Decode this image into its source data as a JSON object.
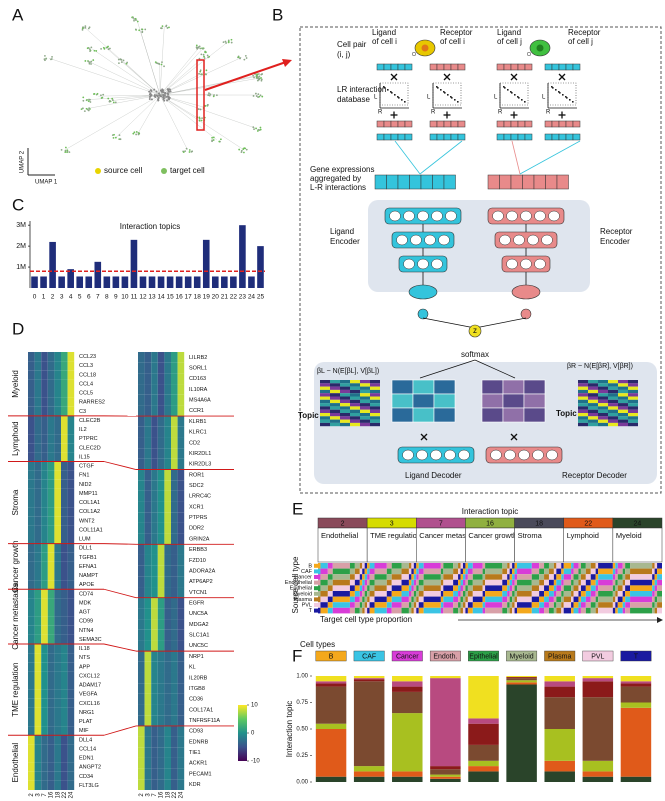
{
  "panel_labels": [
    "A",
    "B",
    "C",
    "D",
    "E",
    "F"
  ],
  "umap": {
    "y_label": "UMAP 2",
    "x_label": "UMAP 1",
    "legend": [
      {
        "name": "source cell",
        "color": "#e8d400"
      },
      {
        "name": "target cell",
        "color": "#7fbf5f"
      }
    ]
  },
  "diagram": {
    "cell_pair": [
      "Cell pair",
      "(i, j)"
    ],
    "ligand_i": [
      "Ligand",
      "of cell i"
    ],
    "receptor_i": [
      "Receptor",
      "of cell i"
    ],
    "ligand_j": [
      "Ligand",
      "of cell j"
    ],
    "receptor_j": [
      "Receptor",
      "of cell j"
    ],
    "lr_database": [
      "LR interaction",
      "database"
    ],
    "matrix_axes": [
      "L",
      "R"
    ],
    "aggregated": [
      "Gene expressions",
      "aggregated by",
      "L-R interactions"
    ],
    "ligand_encoder": [
      "Ligand",
      "Encoder"
    ],
    "receptor_encoder": [
      "Receptor",
      "Encoder"
    ],
    "z": "z",
    "softmax": "softmax",
    "beta_l": "βL ~ N(E[βL], V[βL])",
    "beta_r": "βR ~ N(E[βR], V[βR])",
    "topic_l": "Topic",
    "topic_r": "Topic",
    "ligand_decoder": "Ligand Decoder",
    "receptor_decoder": "Receptor Decoder"
  },
  "chart_data": [
    {
      "type": "bar",
      "title": "Interaction topics",
      "categories": [
        "0",
        "1",
        "2",
        "3",
        "4",
        "5",
        "6",
        "7",
        "8",
        "9",
        "10",
        "11",
        "12",
        "13",
        "14",
        "15",
        "16",
        "17",
        "18",
        "19",
        "20",
        "21",
        "22",
        "23",
        "24",
        "25"
      ],
      "values": [
        550000,
        550000,
        2200000,
        550000,
        900000,
        550000,
        550000,
        1250000,
        550000,
        550000,
        550000,
        2300000,
        550000,
        550000,
        550000,
        550000,
        550000,
        550000,
        550000,
        2300000,
        550000,
        550000,
        550000,
        3000000,
        550000,
        2000000
      ],
      "color": "#1f2d7a",
      "ylim": [
        0,
        3200000
      ],
      "yticks": [
        {
          "value": 1000000,
          "label": "1M"
        },
        {
          "value": 2000000,
          "label": "2M"
        },
        {
          "value": 3000000,
          "label": "3M"
        }
      ],
      "reference_line": 800000,
      "reference_color": "#e0201e"
    },
    {
      "type": "heatmap",
      "columns": [
        "2",
        "3",
        "7",
        "16",
        "18",
        "22",
        "24"
      ],
      "groups": [
        "Myeloid",
        "Lymphoid",
        "Stroma",
        "Cancer growth",
        "Cancer metastasis",
        "TME regulation",
        "Endothelial"
      ],
      "clim": [
        -10,
        10
      ],
      "colorbar_ticks": [
        10,
        0,
        -10
      ],
      "ligand": {
        "genes": [
          [
            "CCL23",
            "CCL3",
            "CCL18",
            "CCL4",
            "CCL5",
            "RARRES2",
            "C3"
          ],
          [
            "CLEC2B",
            "IL2",
            "PTPRC",
            "CLEC2D",
            "IL15"
          ],
          [
            "CTGF",
            "FN1",
            "NID2",
            "MMP11",
            "COL1A1",
            "COL1A2",
            "WNT2",
            "COL11A1",
            "LUM"
          ],
          [
            "DLL1",
            "TGFB1",
            "EFNA1",
            "NAMPT",
            "APOE"
          ],
          [
            "CD74",
            "MDK",
            "AGT",
            "CD99",
            "NTN4",
            "SEMA3C"
          ],
          [
            "IL18",
            "NTS",
            "APP",
            "CXCL12",
            "ADAM17",
            "VEGFA",
            "CXCL16",
            "NRG1",
            "PLAT",
            "MIF"
          ],
          [
            "DLL4",
            "CCL14",
            "EDN1",
            "ANGPT2",
            "CD34",
            "FLT3LG"
          ]
        ],
        "values": [
          [
            -4,
            -2,
            -5,
            -3,
            -1,
            2,
            9
          ],
          [
            -5,
            -3,
            -4,
            -2,
            -3,
            9,
            -1
          ],
          [
            -2,
            -3,
            -1,
            1,
            9,
            -4,
            -5
          ],
          [
            -3,
            -2,
            1,
            9,
            -2,
            -5,
            -4
          ],
          [
            -1,
            1,
            9,
            2,
            -3,
            -4,
            -5
          ],
          [
            -2,
            9,
            0,
            -3,
            -2,
            -1,
            -4
          ],
          [
            9,
            -1,
            -3,
            -4,
            -2,
            -5,
            -3
          ]
        ]
      },
      "receptor": {
        "genes": [
          [
            "LILRB2",
            "SORL1",
            "CD163",
            "IL10RA",
            "MS4A6A",
            "CCR1"
          ],
          [
            "KLRB1",
            "KLRC1",
            "CD2",
            "KIR2DL1",
            "KIR2DL3"
          ],
          [
            "ROR1",
            "SDC2",
            "LRRC4C",
            "XCR1",
            "PTPRS",
            "DDR2",
            "GRIN2A"
          ],
          [
            "ERBB3",
            "FZD10",
            "ADORA2A",
            "ATP6AP2",
            "VTCN1"
          ],
          [
            "EGFR",
            "UNC5A",
            "MDGA2",
            "SLC1A1",
            "UNC5C"
          ],
          [
            "NRP1",
            "KL",
            "IL20RB",
            "ITGB8",
            "CD36",
            "COL17A1",
            "TNFRSF11A"
          ],
          [
            "CD93",
            "EDNRB",
            "TIE1",
            "ACKR1",
            "PECAM1",
            "KDR"
          ]
        ],
        "values": [
          [
            -3,
            -4,
            -2,
            -5,
            -2,
            1,
            8
          ],
          [
            -4,
            -2,
            -5,
            -3,
            -1,
            8,
            -2
          ],
          [
            -1,
            -4,
            -2,
            0,
            8,
            -3,
            -5
          ],
          [
            -4,
            -1,
            0,
            8,
            -3,
            -4,
            -2
          ],
          [
            -2,
            0,
            8,
            1,
            -4,
            -3,
            -5
          ],
          [
            -3,
            8,
            -1,
            -2,
            -3,
            -2,
            -4
          ],
          [
            8,
            -2,
            -4,
            -3,
            -1,
            -4,
            -2
          ]
        ]
      }
    },
    {
      "type": "stacked-strip",
      "title": "Interaction topic",
      "topics": [
        {
          "id": "2",
          "name": "Endothelial",
          "color": "#8a4a5a"
        },
        {
          "id": "3",
          "name": "TME regulation",
          "color": "#d6dc00"
        },
        {
          "id": "7",
          "name": "Cancer metastasis",
          "color": "#b0508e"
        },
        {
          "id": "16",
          "name": "Cancer growth",
          "color": "#90b040"
        },
        {
          "id": "18",
          "name": "Stroma",
          "color": "#4a4a5a"
        },
        {
          "id": "22",
          "name": "Lymphoid",
          "color": "#e05a1a"
        },
        {
          "id": "24",
          "name": "Myeloid",
          "color": "#2a442a"
        }
      ],
      "rows": [
        "B",
        "CAF",
        "Cancer",
        "Endothelial",
        "Epithelial",
        "Myeloid",
        "Plasma",
        "PVL",
        "T"
      ],
      "row_colors": [
        "#f4a81c",
        "#3ac4e4",
        "#d83cd8",
        "#d8a0a8",
        "#2ca048",
        "#a8b890",
        "#b87a1c",
        "#f2cce0",
        "#1a1aa0"
      ],
      "y_label": "Source cell type",
      "x_label": "Target cell type proportion",
      "proportions": [
        [
          0.05,
          0.15,
          0.1,
          0.35,
          0.1,
          0.1,
          0.05,
          0.05,
          0.05
        ],
        [
          0.05,
          0.1,
          0.25,
          0.1,
          0.2,
          0.15,
          0.05,
          0.05,
          0.05
        ],
        [
          0.05,
          0.1,
          0.35,
          0.05,
          0.2,
          0.1,
          0.05,
          0.05,
          0.05
        ],
        [
          0.05,
          0.1,
          0.2,
          0.05,
          0.35,
          0.1,
          0.05,
          0.05,
          0.05
        ],
        [
          0.05,
          0.3,
          0.15,
          0.1,
          0.1,
          0.1,
          0.05,
          0.1,
          0.05
        ],
        [
          0.15,
          0.05,
          0.1,
          0.05,
          0.1,
          0.1,
          0.1,
          0.05,
          0.3
        ],
        [
          0.05,
          0.05,
          0.1,
          0.05,
          0.1,
          0.45,
          0.05,
          0.05,
          0.1
        ]
      ]
    },
    {
      "type": "stacked-bar",
      "title": "Cell types",
      "y_label": "Interaction topic",
      "categories": [
        "B",
        "CAF",
        "Cancer",
        "Endoth.",
        "Epithelial",
        "Myeloid",
        "Plasma",
        "PVL",
        "T"
      ],
      "category_colors": [
        "#f4a81c",
        "#3ac4e4",
        "#d83cd8",
        "#d8a0a8",
        "#2ca048",
        "#a8b890",
        "#b87a1c",
        "#f2cce0",
        "#1a1aa0"
      ],
      "ylim": [
        0,
        1
      ],
      "yticks": [
        {
          "value": 0,
          "label": "0.00"
        },
        {
          "value": 0.25,
          "label": "0.25"
        },
        {
          "value": 0.5,
          "label": "0.50"
        },
        {
          "value": 0.75,
          "label": "0.75"
        },
        {
          "value": 1,
          "label": "1.00"
        }
      ],
      "series": [
        {
          "color": "#2a442a",
          "values": [
            0.05,
            0.05,
            0.05,
            0.03,
            0.1,
            0.92,
            0.1,
            0.05,
            0.05
          ]
        },
        {
          "color": "#e05a1a",
          "values": [
            0.45,
            0.05,
            0.05,
            0.02,
            0.05,
            0.02,
            0.1,
            0.05,
            0.65
          ]
        },
        {
          "color": "#a8c020",
          "values": [
            0.05,
            0.05,
            0.55,
            0.02,
            0.05,
            0.02,
            0.3,
            0.1,
            0.05
          ]
        },
        {
          "color": "#7b4a30",
          "values": [
            0.35,
            0.8,
            0.2,
            0.05,
            0.15,
            0.02,
            0.3,
            0.6,
            0.15
          ]
        },
        {
          "color": "#8b1a1a",
          "values": [
            0.03,
            0.02,
            0.05,
            0.03,
            0.2,
            0.01,
            0.1,
            0.15,
            0.03
          ]
        },
        {
          "color": "#b84a80",
          "values": [
            0.02,
            0.01,
            0.05,
            0.83,
            0.05,
            0,
            0.05,
            0.03,
            0.02
          ]
        },
        {
          "color": "#f0e020",
          "values": [
            0.05,
            0.02,
            0.05,
            0.02,
            0.4,
            0.01,
            0.05,
            0.02,
            0.05
          ]
        }
      ]
    }
  ]
}
